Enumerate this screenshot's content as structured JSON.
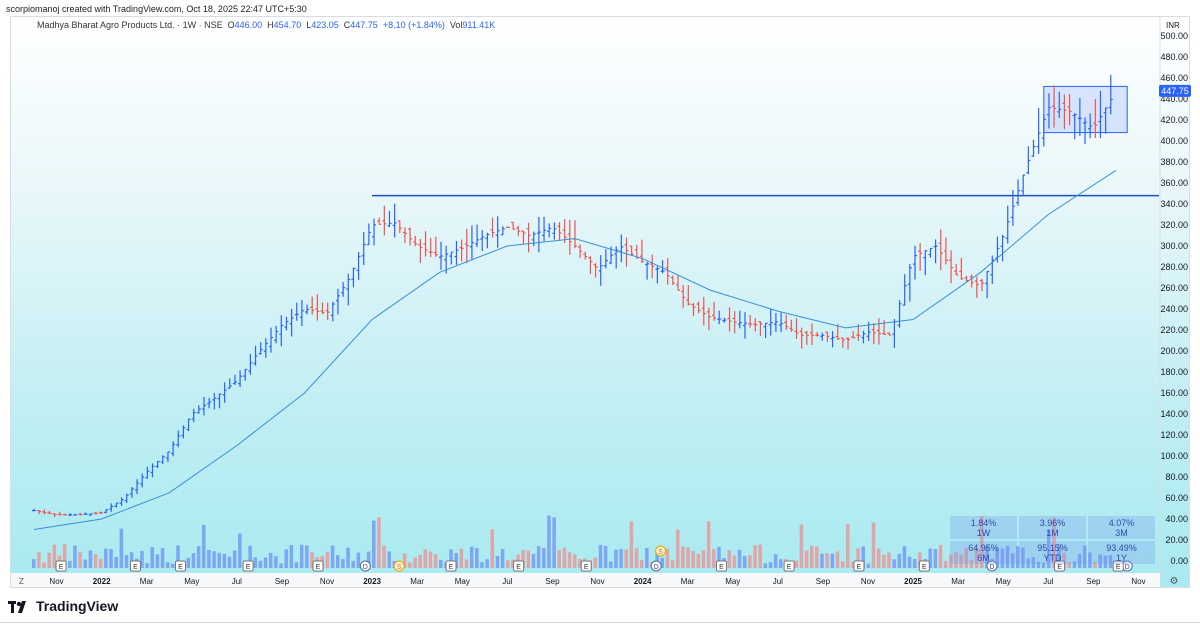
{
  "caption": "scorpiomanoj created with TradingView.com, Oct 18, 2025 22:47 UTC+5:30",
  "legend": {
    "title": "Madhya Bharat Agro Products Ltd. · 1W · NSE",
    "o_label": "O",
    "o": "446.00",
    "h_label": "H",
    "h": "454.70",
    "l_label": "L",
    "l": "423.05",
    "c_label": "C",
    "c": "447.75",
    "change": "+8.10 (+1.84%)",
    "vol_label": "Vol",
    "vol": "911.41K"
  },
  "brand": "TradingView",
  "colors": {
    "up": "#2962ff",
    "down": "#ef5350",
    "ma": "#3a8fd8",
    "resistance": "#1e50c8"
  },
  "chart_data": {
    "type": "candlestick-ohlc-bars",
    "currency": "INR",
    "y_ticks": [
      0,
      20,
      40,
      60,
      80,
      100,
      120,
      140,
      160,
      180,
      200,
      220,
      240,
      260,
      280,
      300,
      320,
      340,
      360,
      380,
      400,
      420,
      440,
      460,
      480,
      500
    ],
    "x_labels": [
      "Nov",
      "2022",
      "Mar",
      "May",
      "Jul",
      "Sep",
      "Nov",
      "2023",
      "Mar",
      "May",
      "Jul",
      "Sep",
      "Nov",
      "2024",
      "Mar",
      "May",
      "Jul",
      "Sep",
      "Nov",
      "2025",
      "Mar",
      "May",
      "Jul",
      "Sep",
      "Nov"
    ],
    "ylim": [
      0,
      500
    ],
    "last_price": "447.75",
    "resistance_level": 348,
    "consolidation_box": {
      "from": "2025-07",
      "to": "2025-10",
      "low": 408,
      "high": 452
    },
    "price_path": [
      [
        "2021-10",
        48
      ],
      [
        "2021-11",
        44
      ],
      [
        "2021-12",
        44
      ],
      [
        "2022-01",
        46
      ],
      [
        "2022-02",
        60
      ],
      [
        "2022-03",
        85
      ],
      [
        "2022-04",
        105
      ],
      [
        "2022-05",
        140
      ],
      [
        "2022-06",
        155
      ],
      [
        "2022-07",
        172
      ],
      [
        "2022-08",
        200
      ],
      [
        "2022-09",
        225
      ],
      [
        "2022-10",
        240
      ],
      [
        "2022-11",
        236
      ],
      [
        "2022-12",
        270
      ],
      [
        "2023-01",
        320
      ],
      [
        "2023-02",
        322
      ],
      [
        "2023-03",
        300
      ],
      [
        "2023-04",
        290
      ],
      [
        "2023-05",
        298
      ],
      [
        "2023-06",
        310
      ],
      [
        "2023-07",
        318
      ],
      [
        "2023-08",
        310
      ],
      [
        "2023-09",
        318
      ],
      [
        "2023-10",
        300
      ],
      [
        "2023-11",
        278
      ],
      [
        "2023-12",
        300
      ],
      [
        "2024-01",
        285
      ],
      [
        "2024-02",
        275
      ],
      [
        "2024-03",
        245
      ],
      [
        "2024-04",
        232
      ],
      [
        "2024-05",
        228
      ],
      [
        "2024-06",
        225
      ],
      [
        "2024-07",
        228
      ],
      [
        "2024-08",
        215
      ],
      [
        "2024-09",
        215
      ],
      [
        "2024-10",
        210
      ],
      [
        "2024-11",
        218
      ],
      [
        "2024-12",
        215
      ],
      [
        "2025-01",
        290
      ],
      [
        "2025-02",
        300
      ],
      [
        "2025-03",
        270
      ],
      [
        "2025-04",
        262
      ],
      [
        "2025-05",
        310
      ],
      [
        "2025-06",
        375
      ],
      [
        "2025-07",
        432
      ],
      [
        "2025-08",
        428
      ],
      [
        "2025-09",
        412
      ],
      [
        "2025-10",
        447.75
      ]
    ],
    "moving_average": [
      [
        "2021-10",
        30
      ],
      [
        "2022-01",
        40
      ],
      [
        "2022-04",
        65
      ],
      [
        "2022-07",
        110
      ],
      [
        "2022-10",
        160
      ],
      [
        "2023-01",
        230
      ],
      [
        "2023-04",
        275
      ],
      [
        "2023-07",
        300
      ],
      [
        "2023-10",
        307
      ],
      [
        "2024-01",
        288
      ],
      [
        "2024-04",
        258
      ],
      [
        "2024-07",
        238
      ],
      [
        "2024-10",
        222
      ],
      [
        "2025-01",
        230
      ],
      [
        "2025-04",
        275
      ],
      [
        "2025-07",
        330
      ],
      [
        "2025-10",
        372
      ]
    ],
    "events": {
      "earnings_label": "E",
      "dividend_label": "D",
      "split_label": "S"
    },
    "performance": [
      {
        "pct": "1.84%",
        "period": "1W"
      },
      {
        "pct": "3.96%",
        "period": "1M"
      },
      {
        "pct": "4.07%",
        "period": "3M"
      },
      {
        "pct": "64.95%",
        "period": "6M"
      },
      {
        "pct": "95.15%",
        "period": "YTD"
      },
      {
        "pct": "93.49%",
        "period": "1Y"
      }
    ],
    "zoom_label": "Z"
  }
}
